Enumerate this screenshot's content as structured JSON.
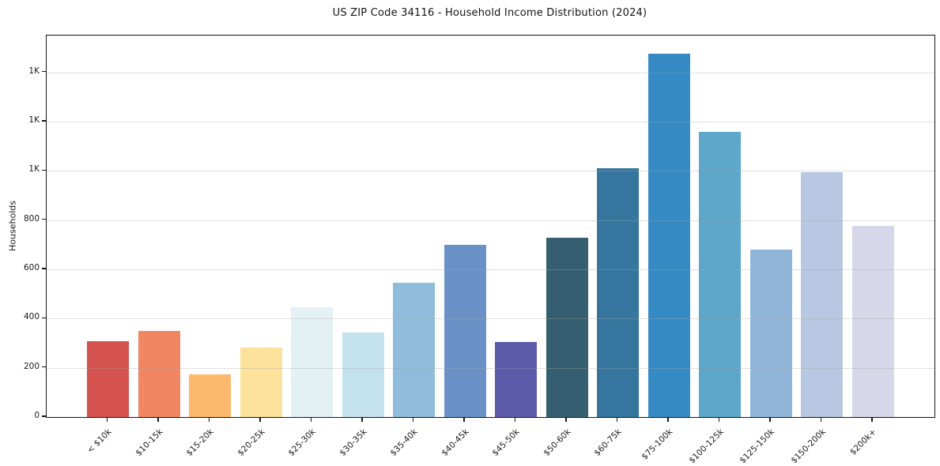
{
  "chart_data": {
    "type": "bar",
    "title": "US ZIP Code 34116 - Household Income Distribution (2024)",
    "xlabel": "",
    "ylabel": "Households",
    "categories": [
      "< $10k",
      "$10-15k",
      "$15-20k",
      "$20-25k",
      "$25-30k",
      "$30-35k",
      "$35-40k",
      "$40-45k",
      "$45-50k",
      "$50-60k",
      "$60-75k",
      "$75-100k",
      "$100-125k",
      "$125-150k",
      "$150-200k",
      "$200k+"
    ],
    "values": [
      308,
      350,
      174,
      281,
      445,
      345,
      545,
      701,
      304,
      730,
      1012,
      1475,
      1159,
      681,
      995,
      777
    ],
    "bar_colors": [
      "#d5534f",
      "#f28562",
      "#fcb96d",
      "#fde29c",
      "#e4f1f4",
      "#c3e2ee",
      "#90bcdc",
      "#6a91c5",
      "#5c5aa9",
      "#355f70",
      "#35759e",
      "#368bc4",
      "#5ca7ca",
      "#91b5d9",
      "#b8c7e2",
      "#d8d7e9"
    ],
    "ylim": [
      0,
      1550
    ],
    "yticks": [
      {
        "value": 0,
        "label": "0"
      },
      {
        "value": 200,
        "label": "200"
      },
      {
        "value": 400,
        "label": "400"
      },
      {
        "value": 600,
        "label": "600"
      },
      {
        "value": 800,
        "label": "800"
      },
      {
        "value": 1000,
        "label": "1K"
      },
      {
        "value": 1200,
        "label": "1K"
      },
      {
        "value": 1400,
        "label": "1K"
      }
    ],
    "grid": true,
    "grid_above_bars": true,
    "legend": false,
    "background_color": "#ffffff",
    "spine_color": "#141414"
  }
}
